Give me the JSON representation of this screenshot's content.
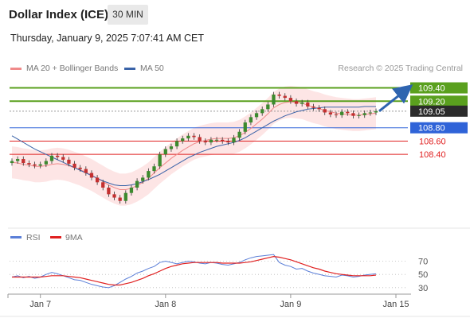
{
  "header": {
    "title": "Dollar Index (ICE)",
    "timeframe": "30 MIN"
  },
  "datetime": "Thursday, January 9, 2025 7:07:41 AM CET",
  "legend": {
    "bollinger": {
      "label": "MA 20 + Bollinger Bands",
      "color": "#f08a8a"
    },
    "ma50": {
      "label": "MA 50",
      "color": "#3a63a8"
    },
    "credit": "Research © 2025 Trading Central"
  },
  "chart_data": [
    {
      "type": "candlestick",
      "title": "Dollar Index (ICE)",
      "ylim": [
        107.35,
        109.55
      ],
      "levels": [
        {
          "value": 109.4,
          "label": "109.40",
          "kind": "resistance",
          "color": "#5aa01e"
        },
        {
          "value": 109.2,
          "label": "109.20",
          "kind": "resistance",
          "color": "#5aa01e"
        },
        {
          "value": 109.05,
          "label": "109.05",
          "kind": "last",
          "color": "#2b2b2b"
        },
        {
          "value": 108.8,
          "label": "108.80",
          "kind": "pivot",
          "color": "#2f63d8"
        },
        {
          "value": 108.6,
          "label": "108.60",
          "kind": "support",
          "color": "#e02020"
        },
        {
          "value": 108.4,
          "label": "108.40",
          "kind": "support",
          "color": "#e02020"
        }
      ],
      "close": [
        108.3,
        108.33,
        108.27,
        108.25,
        108.23,
        108.25,
        108.3,
        108.38,
        108.36,
        108.32,
        108.26,
        108.2,
        108.18,
        108.12,
        108.05,
        107.98,
        107.9,
        107.8,
        107.75,
        107.7,
        107.82,
        107.9,
        108.0,
        108.05,
        108.15,
        108.22,
        108.4,
        108.48,
        108.52,
        108.6,
        108.64,
        108.68,
        108.66,
        108.6,
        108.58,
        108.62,
        108.62,
        108.6,
        108.58,
        108.65,
        108.74,
        108.88,
        108.96,
        109.02,
        109.08,
        109.15,
        109.3,
        109.28,
        109.25,
        109.2,
        109.16,
        109.18,
        109.12,
        109.1,
        109.08,
        109.03,
        109.0,
        108.99,
        109.04,
        109.02,
        108.98,
        108.99,
        109.02,
        109.03,
        109.05
      ],
      "ma20": [
        108.28,
        108.27,
        108.25,
        108.24,
        108.22,
        108.22,
        108.23,
        108.25,
        108.26,
        108.25,
        108.23,
        108.2,
        108.17,
        108.13,
        108.09,
        108.04,
        107.99,
        107.94,
        107.9,
        107.87,
        107.87,
        107.89,
        107.93,
        107.98,
        108.04,
        108.12,
        108.2,
        108.27,
        108.34,
        108.4,
        108.46,
        108.51,
        108.56,
        108.59,
        108.61,
        108.63,
        108.64,
        108.64,
        108.64,
        108.65,
        108.68,
        108.73,
        108.79,
        108.86,
        108.93,
        109.01,
        109.1,
        109.15,
        109.18,
        109.19,
        109.18,
        109.17,
        109.14,
        109.11,
        109.09,
        109.06,
        109.04,
        109.02,
        109.01,
        109.0,
        108.99,
        108.99,
        109.0,
        109.01,
        109.02
      ],
      "ma50": [
        108.68,
        108.63,
        108.58,
        108.53,
        108.48,
        108.44,
        108.4,
        108.36,
        108.32,
        108.28,
        108.24,
        108.2,
        108.16,
        108.12,
        108.08,
        108.04,
        108.0,
        107.97,
        107.94,
        107.93,
        107.93,
        107.94,
        107.96,
        107.99,
        108.02,
        108.06,
        108.1,
        108.15,
        108.2,
        108.25,
        108.3,
        108.35,
        108.39,
        108.43,
        108.46,
        108.49,
        108.52,
        108.54,
        108.56,
        108.58,
        108.61,
        108.65,
        108.7,
        108.75,
        108.8,
        108.85,
        108.9,
        108.94,
        108.98,
        109.01,
        109.04,
        109.06,
        109.08,
        109.09,
        109.1,
        109.11,
        109.11,
        109.11,
        109.11,
        109.11,
        109.11,
        109.11,
        109.12,
        109.12,
        109.12
      ],
      "bb_width": 0.24,
      "arrow": {
        "from_value": 109.05,
        "to_value": 109.4
      },
      "x_ticks": [
        {
          "index": 5,
          "label": "Jan 7"
        },
        {
          "index": 27,
          "label": "Jan 8"
        },
        {
          "index": 49,
          "label": "Jan 9"
        },
        {
          "index": 58,
          "label": "Jan 15"
        }
      ]
    },
    {
      "type": "line",
      "ylim": [
        25,
        85
      ],
      "y_ticks": [
        70,
        50,
        30
      ],
      "series": [
        {
          "name": "RSI",
          "color": "#5b7fd8"
        },
        {
          "name": "9MA",
          "color": "#e02020"
        }
      ],
      "rsi": [
        46,
        48,
        45,
        47,
        44,
        46,
        50,
        53,
        51,
        48,
        45,
        42,
        41,
        38,
        35,
        33,
        31,
        30,
        33,
        38,
        43,
        47,
        52,
        55,
        59,
        62,
        68,
        70,
        68,
        66,
        68,
        70,
        69,
        67,
        66,
        68,
        67,
        65,
        64,
        66,
        68,
        72,
        75,
        77,
        78,
        79,
        80,
        68,
        64,
        62,
        58,
        59,
        55,
        52,
        50,
        48,
        47,
        46,
        49,
        48,
        46,
        47,
        49,
        50,
        51
      ],
      "rsi_ma": [
        46,
        46,
        46,
        46,
        46,
        46,
        47,
        48,
        48,
        48,
        47,
        46,
        45,
        43,
        41,
        39,
        37,
        35,
        34,
        34,
        36,
        38,
        41,
        44,
        48,
        51,
        55,
        59,
        62,
        64,
        66,
        67,
        68,
        68,
        68,
        68,
        68,
        67,
        67,
        67,
        67,
        68,
        69,
        71,
        73,
        75,
        77,
        76,
        74,
        72,
        69,
        66,
        63,
        60,
        58,
        55,
        53,
        51,
        50,
        49,
        48,
        48,
        48,
        48,
        49
      ]
    }
  ]
}
